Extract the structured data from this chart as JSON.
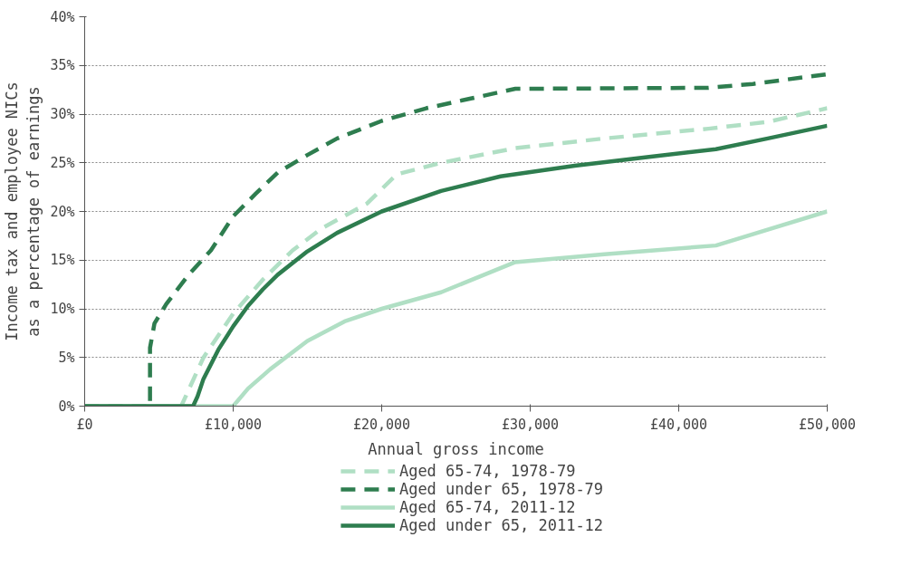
{
  "chart_data": {
    "type": "line",
    "xlabel": "Annual gross income",
    "ylabel": "Income tax and employee NICs\nas a percentage of earnings",
    "xlim": [
      0,
      50000
    ],
    "xticks": [
      {
        "value": 0,
        "label": "£0"
      },
      {
        "value": 10000,
        "label": "£10,000"
      },
      {
        "value": 20000,
        "label": "£20,000"
      },
      {
        "value": 30000,
        "label": "£30,000"
      },
      {
        "value": 40000,
        "label": "£40,000"
      },
      {
        "value": 50000,
        "label": "£50,000"
      }
    ],
    "ylim": [
      0,
      40
    ],
    "yticks": [
      {
        "value": 0,
        "label": "0%"
      },
      {
        "value": 5,
        "label": "5%"
      },
      {
        "value": 10,
        "label": "10%"
      },
      {
        "value": 15,
        "label": "15%"
      },
      {
        "value": 20,
        "label": "20%"
      },
      {
        "value": 25,
        "label": "25%"
      },
      {
        "value": 30,
        "label": "30%"
      },
      {
        "value": 35,
        "label": "35%"
      },
      {
        "value": 40,
        "label": "40%"
      }
    ],
    "grid": "y",
    "legend": "bottom",
    "marker": "none",
    "series": [
      {
        "name": "Aged 65-74, 1978-79",
        "color": "#b0dfc4",
        "line_style": "dashed",
        "x": [
          0,
          6500,
          8000,
          10000,
          12000,
          14000,
          16000,
          19000,
          21000,
          24000,
          29000,
          35000,
          42000,
          46000,
          50000
        ],
        "values": [
          0,
          0,
          5,
          9.5,
          13,
          16,
          18.3,
          20.8,
          23.8,
          25,
          26.5,
          27.5,
          28.5,
          29.2,
          30.6
        ]
      },
      {
        "name": "Aged under 65, 1978-79",
        "color": "#2e7d4f",
        "line_style": "dashed",
        "x": [
          0,
          4400,
          4400,
          4700,
          5500,
          7000,
          8500,
          10000,
          11500,
          13000,
          15000,
          17000,
          20000,
          23000,
          26000,
          29000,
          42000,
          45000,
          50000
        ],
        "values": [
          0,
          0,
          6,
          8.5,
          10.5,
          13.5,
          16,
          19.5,
          21.8,
          24,
          25.8,
          27.5,
          29.3,
          30.6,
          31.6,
          32.6,
          32.7,
          33.1,
          34.1
        ]
      },
      {
        "name": "Aged 65-74, 2011-12",
        "color": "#b0dfc4",
        "line_style": "solid",
        "x": [
          0,
          10000,
          11000,
          12500,
          15000,
          17500,
          20000,
          24000,
          29000,
          35000,
          42500,
          50000
        ],
        "values": [
          0,
          0,
          1.8,
          3.8,
          6.7,
          8.7,
          10,
          11.7,
          14.8,
          15.6,
          16.5,
          20
        ]
      },
      {
        "name": "Aged under 65, 2011-12",
        "color": "#2e7d4f",
        "line_style": "solid",
        "x": [
          0,
          7300,
          7600,
          8000,
          9000,
          10000,
          11000,
          12000,
          13000,
          15000,
          17000,
          20000,
          24000,
          28000,
          33000,
          38000,
          42500,
          46000,
          50000
        ],
        "values": [
          0,
          0,
          1,
          2.8,
          5.8,
          8.2,
          10.3,
          12,
          13.5,
          15.9,
          17.8,
          20,
          22.1,
          23.6,
          24.7,
          25.6,
          26.4,
          27.5,
          28.8
        ]
      }
    ]
  }
}
